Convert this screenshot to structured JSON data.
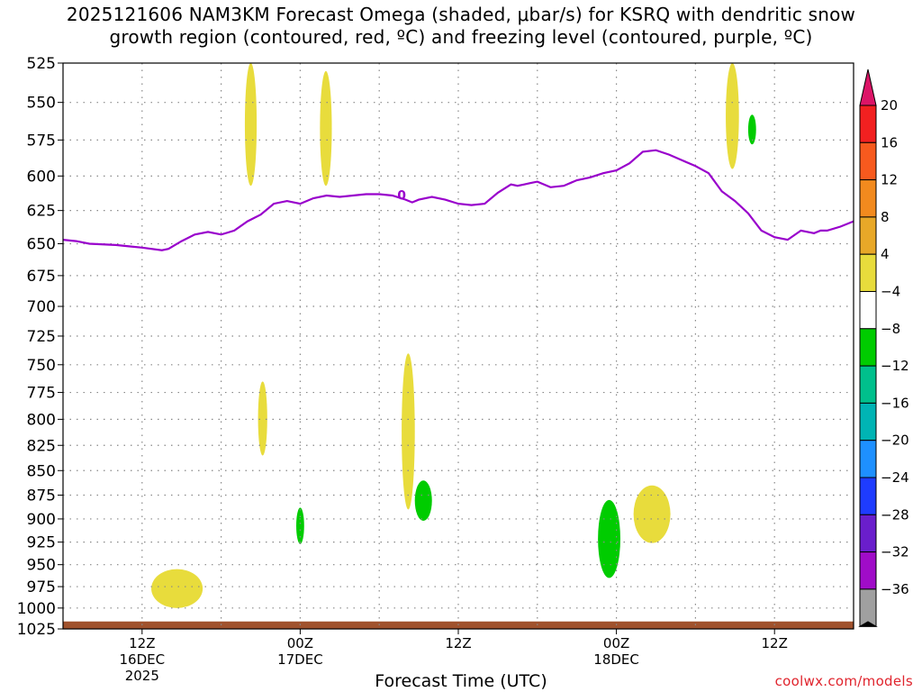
{
  "title": {
    "line1": "2025121606 NAM3KM Forecast Omega (shaded, μbar/s) for KSRQ with dendritic snow",
    "line2": "growth region (contoured, red, ºC) and freezing level (contoured, purple, ºC)"
  },
  "credit": "coolwx.com/models",
  "colors": {
    "freezing": "#9900cc",
    "yellow": "#e8dc3c",
    "green": "#00cc00",
    "ground": "#a0522d",
    "grid": "#888888"
  },
  "chart_data": {
    "type": "heatmap",
    "xlabel": "Forecast Time (UTC)",
    "ylabel": "",
    "y_scale": "log-pressure",
    "y_ticks": [
      525,
      550,
      575,
      600,
      625,
      650,
      675,
      700,
      725,
      750,
      775,
      800,
      825,
      850,
      875,
      900,
      925,
      950,
      975,
      1000,
      1025
    ],
    "ylim": [
      1025,
      525
    ],
    "x_ticks": [
      {
        "hour": 6,
        "lines": [
          "12Z",
          "16DEC",
          "2025"
        ]
      },
      {
        "hour": 18,
        "lines": [
          "00Z",
          "17DEC"
        ]
      },
      {
        "hour": 30,
        "lines": [
          "12Z"
        ]
      },
      {
        "hour": 42,
        "lines": [
          "00Z",
          "18DEC"
        ]
      },
      {
        "hour": 54,
        "lines": [
          "12Z"
        ]
      }
    ],
    "xlim": [
      0,
      60
    ],
    "grid": true,
    "freezing_level": {
      "label": "0",
      "hours": [
        0,
        1,
        2,
        4,
        5,
        6,
        7.5,
        8,
        9,
        10,
        11,
        12,
        13,
        14,
        15,
        16,
        17,
        18,
        19,
        20,
        21,
        22,
        23,
        24,
        25,
        26,
        26.5,
        27,
        28,
        29,
        30,
        31,
        32,
        33,
        34,
        34.5,
        35,
        35.5,
        36,
        37,
        38,
        39,
        40,
        41,
        42,
        43,
        44,
        45,
        46,
        47,
        48,
        49,
        50,
        51,
        52,
        53,
        54,
        55,
        56,
        57,
        57.5,
        58,
        59,
        60
      ],
      "pressure": [
        647,
        648,
        650,
        651,
        652,
        653,
        655,
        654,
        648,
        643,
        641,
        643,
        640,
        633,
        628,
        620,
        618,
        620,
        616,
        614,
        615,
        614,
        613,
        613,
        614,
        617,
        619,
        617,
        615,
        617,
        620,
        621,
        620,
        612,
        606,
        607,
        606,
        605,
        604,
        608,
        607,
        603,
        601,
        598,
        596,
        591,
        583,
        582,
        585,
        589,
        593,
        598,
        611,
        618,
        627,
        640,
        645,
        647,
        640,
        642,
        640,
        640,
        637,
        633
      ]
    },
    "series": [
      {
        "category": "4 to 8",
        "color": "yellow",
        "cells": [
          {
            "hours": [
              13.8,
              14.7
            ],
            "pressure": [
              525,
              607
            ]
          },
          {
            "hours": [
              19.5,
              20.4
            ],
            "pressure": [
              530,
              607
            ]
          },
          {
            "hours": [
              14.8,
              15.5
            ],
            "pressure": [
              765,
              835
            ]
          },
          {
            "hours": [
              25.7,
              26.7
            ],
            "pressure": [
              740,
              890
            ]
          },
          {
            "hours": [
              50.3,
              51.3
            ],
            "pressure": [
              525,
              595
            ]
          },
          {
            "hours": [
              6.7,
              10.6
            ],
            "pressure": [
              955,
              1000
            ]
          },
          {
            "hours": [
              43.3,
              46.1
            ],
            "pressure": [
              865,
              926
            ]
          }
        ]
      },
      {
        "category": "-4 to -8",
        "color": "green",
        "cells": [
          {
            "hours": [
              52.0,
              52.6
            ],
            "pressure": [
              558,
              578
            ]
          },
          {
            "hours": [
              17.7,
              18.3
            ],
            "pressure": [
              888,
              927
            ]
          },
          {
            "hours": [
              26.7,
              28.0
            ],
            "pressure": [
              860,
              902
            ]
          },
          {
            "hours": [
              40.6,
              42.3
            ],
            "pressure": [
              880,
              965
            ]
          }
        ]
      }
    ],
    "colorbar": {
      "label_values": [
        "20",
        "16",
        "12",
        "8",
        "4",
        "−4",
        "−8",
        "−12",
        "−16",
        "−20",
        "−24",
        "−28",
        "−32",
        "−36"
      ],
      "bins": [
        {
          "color": "#dc1467"
        },
        {
          "color": "#f22020"
        },
        {
          "color": "#f75a1e"
        },
        {
          "color": "#f28a1e"
        },
        {
          "color": "#e8a828"
        },
        {
          "color": "#e8dc3c"
        },
        {
          "color": "#ffffff"
        },
        {
          "color": "#00cc00"
        },
        {
          "color": "#00c08c"
        },
        {
          "color": "#00b4b4"
        },
        {
          "color": "#1e90ff"
        },
        {
          "color": "#1e3cff"
        },
        {
          "color": "#6a1ecc"
        },
        {
          "color": "#a00cc8"
        },
        {
          "color": "#a0a0a0"
        },
        {
          "color": "#000000"
        }
      ]
    },
    "ground": {
      "pressure_top_range": [
        1016,
        1021
      ]
    }
  }
}
